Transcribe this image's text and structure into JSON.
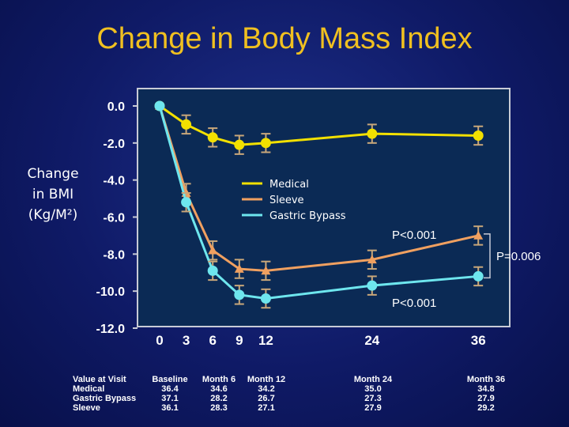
{
  "title": "Change in Body Mass Index",
  "side_label_lines": [
    "Change",
    "in BMI",
    "(Kg/M²)"
  ],
  "chart_data": {
    "type": "line",
    "x": [
      0,
      3,
      6,
      9,
      12,
      24,
      36
    ],
    "x_tick_labels": [
      "0",
      "3",
      "6",
      "9",
      "12",
      "24",
      "36"
    ],
    "y_tick_labels": [
      "0.0",
      "-2.0",
      "-4.0",
      "-6.0",
      "-8.0",
      "-10.0",
      "-12.0"
    ],
    "ylim": [
      -12,
      0
    ],
    "series": [
      {
        "name": "Medical",
        "color": "#f2e000",
        "marker": "circle",
        "values": [
          0,
          -1.0,
          -1.7,
          -2.1,
          -2.0,
          -1.5,
          -1.6
        ],
        "errors": [
          0,
          0.5,
          0.5,
          0.5,
          0.5,
          0.5,
          0.5
        ]
      },
      {
        "name": "Sleeve",
        "color": "#f0a060",
        "marker": "triangle",
        "values": [
          0,
          -4.7,
          -7.8,
          -8.8,
          -8.9,
          -8.3,
          -7.0
        ],
        "errors": [
          0,
          0.5,
          0.5,
          0.5,
          0.5,
          0.5,
          0.5
        ]
      },
      {
        "name": "Gastric Bypass",
        "color": "#6ee6ee",
        "marker": "circle",
        "values": [
          0,
          -5.2,
          -8.9,
          -10.2,
          -10.4,
          -9.7,
          -9.2
        ],
        "errors": [
          0,
          0.5,
          0.5,
          0.5,
          0.5,
          0.5,
          0.5
        ]
      }
    ],
    "annotations": [
      "P<0.001",
      "P=0.006",
      "P<0.001"
    ],
    "legend_placement": "top-center"
  },
  "table": {
    "row_labels": [
      "Value at Visit",
      "Medical",
      "Gastric Bypass",
      "Sleeve"
    ],
    "columns": [
      {
        "header": "Baseline",
        "values": [
          "36.4",
          "37.1",
          "36.1"
        ]
      },
      {
        "header": "Month 6",
        "values": [
          "34.6",
          "28.2",
          "28.3"
        ]
      },
      {
        "header": "Month 12",
        "values": [
          "34.2",
          "26.7",
          "27.1"
        ]
      },
      {
        "header": "Month 24",
        "values": [
          "35.0",
          "27.3",
          "27.9"
        ]
      },
      {
        "header": "Month 36",
        "values": [
          "34.8",
          "27.9",
          "29.2"
        ]
      }
    ]
  }
}
